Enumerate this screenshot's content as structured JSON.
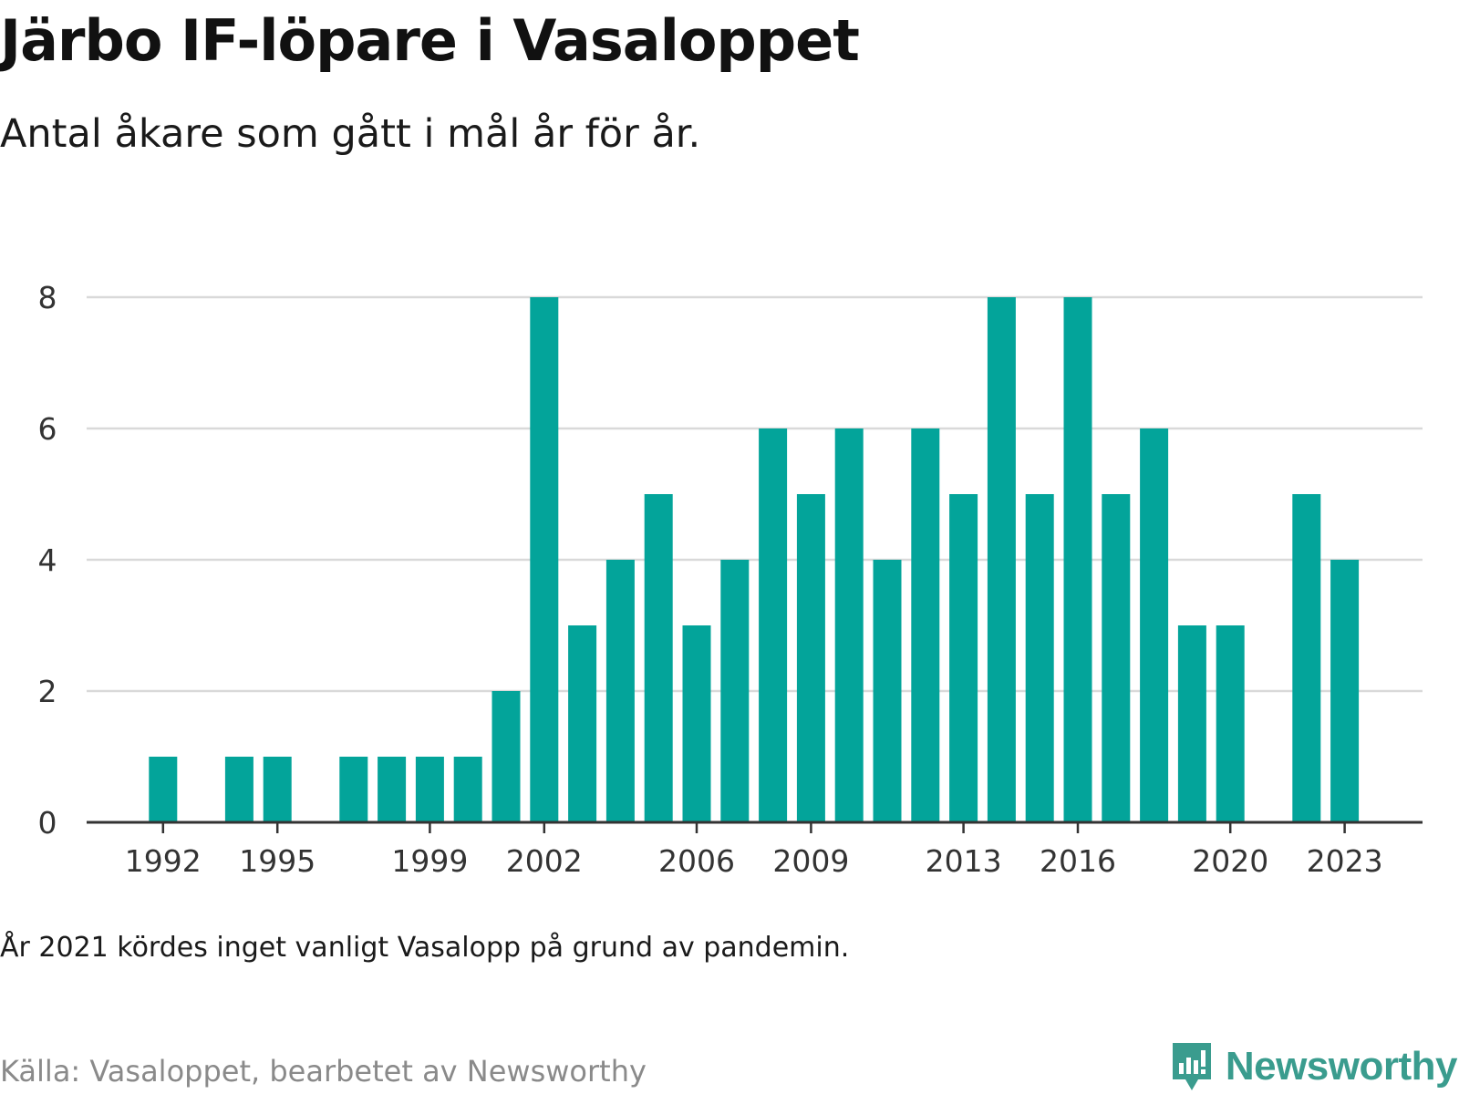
{
  "header": {
    "title": "Järbo IF-löpare i Vasaloppet",
    "subtitle": "Antal åkare som gått i mål år för år."
  },
  "footer": {
    "note": "År 2021 kördes inget vanligt Vasalopp på grund av pandemin.",
    "source": "Källa: Vasaloppet, bearbetet av Newsworthy",
    "brand": "Newsworthy",
    "brand_icon": "newsworthy-logo-icon"
  },
  "colors": {
    "bar": "#03a49a",
    "grid": "#d9d9d9",
    "axis": "#333333",
    "brand": "#3a9c8e"
  },
  "chart_data": {
    "type": "bar",
    "title": "Järbo IF-löpare i Vasaloppet",
    "subtitle": "Antal åkare som gått i mål år för år.",
    "xlabel": "",
    "ylabel": "",
    "x": [
      1991,
      1992,
      1993,
      1994,
      1995,
      1996,
      1997,
      1998,
      1999,
      2000,
      2001,
      2002,
      2003,
      2004,
      2005,
      2006,
      2007,
      2008,
      2009,
      2010,
      2011,
      2012,
      2013,
      2014,
      2015,
      2016,
      2017,
      2018,
      2019,
      2020,
      2021,
      2022,
      2023,
      2024
    ],
    "values": [
      null,
      1,
      null,
      1,
      1,
      null,
      1,
      1,
      1,
      1,
      2,
      8,
      3,
      4,
      5,
      3,
      4,
      6,
      5,
      6,
      4,
      6,
      5,
      8,
      5,
      8,
      5,
      6,
      3,
      3,
      null,
      5,
      4,
      null
    ],
    "xticks": [
      1992,
      1995,
      1999,
      2002,
      2006,
      2009,
      2013,
      2016,
      2020,
      2023
    ],
    "yticks": [
      0,
      2,
      4,
      6,
      8
    ],
    "ylim": [
      0,
      8
    ],
    "grid": true,
    "legend": "none"
  }
}
